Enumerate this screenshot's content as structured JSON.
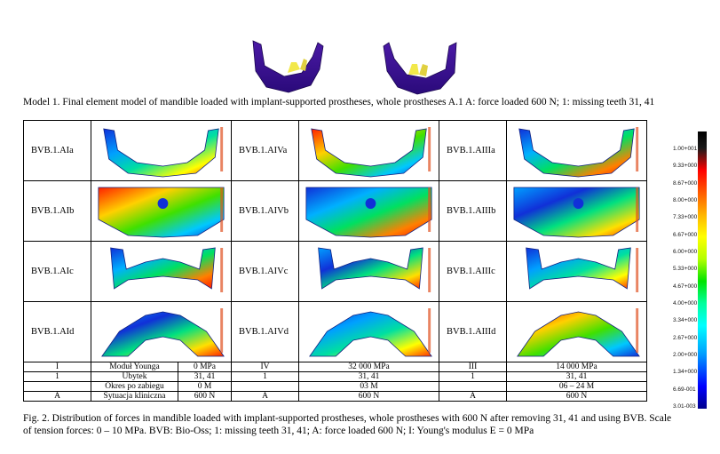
{
  "caption_top": "Model 1. Final element model of mandible loaded with implant-supported prostheses, whole prostheses A.1 A: force loaded 600 N; 1: missing teeth 31, 41",
  "rows": [
    {
      "labels": [
        "BVB.1.AIa",
        "BVB.1.AIVa",
        "BVB.1.AIIIa"
      ]
    },
    {
      "labels": [
        "BVB.1.AIb",
        "BVB.1.AIVb",
        "BVB.1.AIIIb"
      ]
    },
    {
      "labels": [
        "BVB.1.AIc",
        "BVB.1.AIVc",
        "BVB.1.AIIIc"
      ]
    },
    {
      "labels": [
        "BVB.1.AId",
        "BVB.1.AIVd",
        "BVB.1.AIIId"
      ]
    }
  ],
  "params": [
    [
      "I",
      "Moduł Younga",
      "0 MPa",
      "IV",
      "32 000 MPa",
      "III",
      "14 000 MPa"
    ],
    [
      "1",
      "Ubytek",
      "31, 41",
      "1",
      "31, 41",
      "1",
      "31, 41"
    ],
    [
      "",
      "Okres po zabiegu",
      "0 M",
      "",
      "03 M",
      "",
      "06 – 24 M"
    ],
    [
      "A",
      "Sytuacja kliniczna",
      "600 N",
      "A",
      "600 N",
      "A",
      "600 N"
    ]
  ],
  "scale_ticks": [
    "1.00+001",
    "9.33+000",
    "8.67+000",
    "8.00+000",
    "7.33+000",
    "6.67+000",
    "6.00+000",
    "5.33+000",
    "4.67+000",
    "4.00+000",
    "3.34+000",
    "2.67+000",
    "2.00+000",
    "1.34+000",
    "6.69-001",
    "3.01-003"
  ],
  "caption_bottom": "Fig. 2. Distribution of forces in mandible loaded with implant-supported prostheses, whole prostheses with 600 N after removing 31, 41 and using BVB. Scale of tension forces: 0 – 10 MPa. BVB: Bio-Oss; 1: missing teeth 31, 41; A: force loaded 600 N; I: Young's modulus E = 0 MPa"
}
